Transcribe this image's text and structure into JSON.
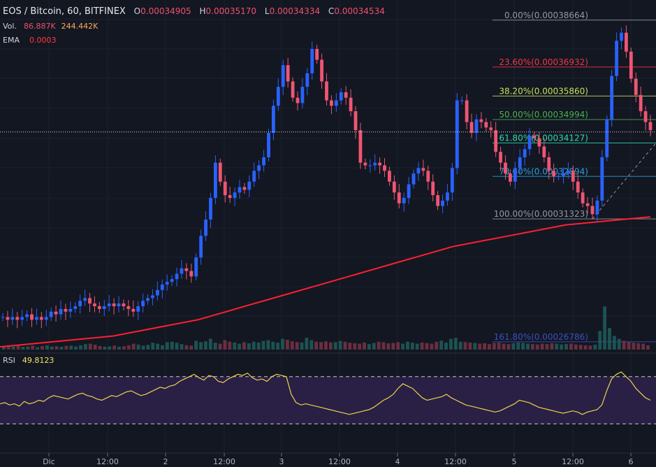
{
  "chart_data": {
    "type": "candlestick",
    "title": "EOS / Bitcoin, 60, BITFINEX",
    "ohlc": {
      "o_label": "O",
      "o": "0.00034905",
      "h_label": "H",
      "h": "0.00035170",
      "l_label": "L",
      "l": "0.00034334",
      "c_label": "C",
      "c": "0.00034534"
    },
    "indicators": {
      "vol_label": "Vol.",
      "vol_value": "86.887K",
      "vol_ma": "244.442K",
      "ema_label": "EMA",
      "ema_value": "0.0003",
      "rsi_label": "RSI",
      "rsi_value": "49.8123"
    },
    "x_ticks": [
      "Dic",
      "12:00",
      "2",
      "12:00",
      "3",
      "12:00",
      "4",
      "12:00",
      "5",
      "12:00",
      "6"
    ],
    "ylim": [
      0.000265,
      0.000392
    ],
    "fib_levels": [
      {
        "label": "0.00%(0.00038664)",
        "value": 0.00038664,
        "color": "#9598a1"
      },
      {
        "label": "23.60%(0.00036932)",
        "value": 0.00036932,
        "color": "#f23645"
      },
      {
        "label": "38.20%(0.00035860)",
        "value": 0.0003586,
        "color": "#c3e25b"
      },
      {
        "label": "50.00%(0.00034994)",
        "value": 0.00034994,
        "color": "#4caf50"
      },
      {
        "label": "61.80%(0.00034127)",
        "value": 0.00034127,
        "color": "#2bd9a8"
      },
      {
        "label": "78.60%(0.00032894)",
        "value": 0.00032894,
        "color": "#2aa2d8"
      },
      {
        "label": "100.00%(0.00031323)",
        "value": 0.00031323,
        "color": "#9598a1"
      },
      {
        "label": "161.80%(0.00026786)",
        "value": 0.00026786,
        "color": "#3d4fbd"
      }
    ],
    "last_price": 0.00034534,
    "price_path": [
      0.000277,
      0.000276,
      0.000277,
      0.000276,
      0.000277,
      0.000278,
      0.000276,
      0.000277,
      0.000276,
      0.000277,
      0.000279,
      0.000278,
      0.00028,
      0.000279,
      0.00028,
      0.000281,
      0.000283,
      0.000284,
      0.000282,
      0.000281,
      0.00028,
      0.000281,
      0.000282,
      0.000281,
      0.000282,
      0.000281,
      0.00028,
      0.000279,
      0.000281,
      0.000283,
      0.000284,
      0.000285,
      0.000287,
      0.000289,
      0.00029,
      0.000291,
      0.000293,
      0.000295,
      0.000294,
      0.000292,
      0.000299,
      0.000307,
      0.000313,
      0.000321,
      0.000334,
      0.000327,
      0.000322,
      0.000321,
      0.000323,
      0.000325,
      0.000324,
      0.000327,
      0.000331,
      0.000333,
      0.000336,
      0.000345,
      0.000355,
      0.000362,
      0.00037,
      0.000364,
      0.000358,
      0.000356,
      0.000362,
      0.000367,
      0.000376,
      0.000372,
      0.000364,
      0.000357,
      0.000355,
      0.000357,
      0.00036,
      0.000358,
      0.000353,
      0.000346,
      0.000334,
      0.000333,
      0.000333,
      0.000334,
      0.000333,
      0.000331,
      0.000327,
      0.000323,
      0.000319,
      0.000321,
      0.000326,
      0.00033,
      0.000332,
      0.000331,
      0.000327,
      0.000322,
      0.000318,
      0.00032,
      0.000323,
      0.000332,
      0.000357,
      0.000357,
      0.000349,
      0.000345,
      0.00035,
      0.000349,
      0.000347,
      0.000346,
      0.000338,
      0.000334,
      0.00033,
      0.000327,
      0.000332,
      0.000336,
      0.000339,
      0.000344,
      0.000343,
      0.00034,
      0.000336,
      0.000331,
      0.000329,
      0.000329,
      0.00033,
      0.000331,
      0.000327,
      0.000323,
      0.000319,
      0.000318,
      0.000315,
      0.00032,
      0.000336,
      0.00035,
      0.000366,
      0.000379,
      0.000382,
      0.000375,
      0.000365,
      0.000359,
      0.000353,
      0.000349,
      0.000346
    ],
    "ema_path": [
      0.000266,
      0.000267,
      0.000268,
      0.000269,
      0.00027,
      0.000272,
      0.000274,
      0.000276,
      0.000279,
      0.000282,
      0.000285,
      0.000288,
      0.000291,
      0.000294,
      0.000297,
      0.0003,
      0.000303,
      0.000305,
      0.000307,
      0.000309,
      0.000311,
      0.000312,
      0.000313,
      0.000314
    ],
    "volume_path": [
      0.18,
      0.22,
      0.15,
      0.2,
      0.14,
      0.16,
      0.2,
      0.12,
      0.18,
      0.22,
      0.15,
      0.17,
      0.14,
      0.19,
      0.2,
      0.16,
      0.22,
      0.28,
      0.3,
      0.25,
      0.18,
      0.15,
      0.16,
      0.2,
      0.15,
      0.17,
      0.22,
      0.3,
      0.25,
      0.2,
      0.24,
      0.35,
      0.3,
      0.22,
      0.38,
      0.4,
      0.35,
      0.28,
      0.22,
      0.2,
      0.45,
      0.38,
      0.42,
      0.55,
      0.35,
      0.3,
      0.48,
      0.4,
      0.36,
      0.3,
      0.38,
      0.32,
      0.4,
      0.36,
      0.44,
      0.48,
      0.4,
      0.35,
      0.55,
      0.5,
      0.42,
      0.38,
      0.36,
      0.6,
      0.48,
      0.4,
      0.38,
      0.42,
      0.36,
      0.38,
      0.44,
      0.4,
      0.35,
      0.32,
      0.3,
      0.36,
      0.28,
      0.34,
      0.4,
      0.38,
      0.32,
      0.34,
      0.38,
      0.3,
      0.4,
      0.35,
      0.3,
      0.36,
      0.33,
      0.3,
      0.4,
      0.45,
      0.35,
      0.55,
      0.6,
      0.4,
      0.38,
      0.36,
      0.34,
      0.3,
      0.32,
      0.28,
      0.34,
      0.36,
      0.3,
      0.28,
      0.32,
      0.36,
      0.34,
      0.3,
      0.28,
      0.26,
      0.3,
      0.28,
      0.32,
      0.3,
      0.26,
      0.28,
      0.3,
      0.26,
      0.24,
      0.22,
      0.2,
      0.25,
      0.95,
      2.2,
      1.1,
      0.7,
      0.55,
      0.45,
      0.4,
      0.35,
      0.32,
      0.3,
      0.22
    ],
    "rsi_path": [
      47,
      48,
      46,
      47,
      45,
      49,
      47,
      48,
      50,
      49,
      52,
      54,
      53,
      52,
      51,
      53,
      55,
      56,
      54,
      53,
      51,
      50,
      52,
      54,
      53,
      55,
      57,
      58,
      56,
      54,
      55,
      57,
      59,
      61,
      60,
      62,
      63,
      66,
      68,
      70,
      72,
      69,
      67,
      71,
      70,
      66,
      65,
      68,
      70,
      72,
      71,
      73,
      69,
      67,
      68,
      66,
      70,
      72,
      71,
      70,
      55,
      48,
      46,
      47,
      46,
      45,
      44,
      43,
      42,
      41,
      40,
      39,
      38,
      39,
      40,
      41,
      42,
      44,
      47,
      50,
      52,
      55,
      60,
      64,
      62,
      60,
      56,
      52,
      50,
      51,
      52,
      53,
      55,
      52,
      50,
      48,
      46,
      45,
      44,
      43,
      42,
      41,
      40,
      41,
      43,
      45,
      47,
      50,
      49,
      48,
      46,
      44,
      43,
      42,
      41,
      40,
      39,
      40,
      41,
      40,
      38,
      40,
      41,
      42,
      46,
      58,
      68,
      72,
      74,
      70,
      66,
      60,
      56,
      52,
      50
    ],
    "rsi_levels": [
      70,
      30
    ]
  }
}
